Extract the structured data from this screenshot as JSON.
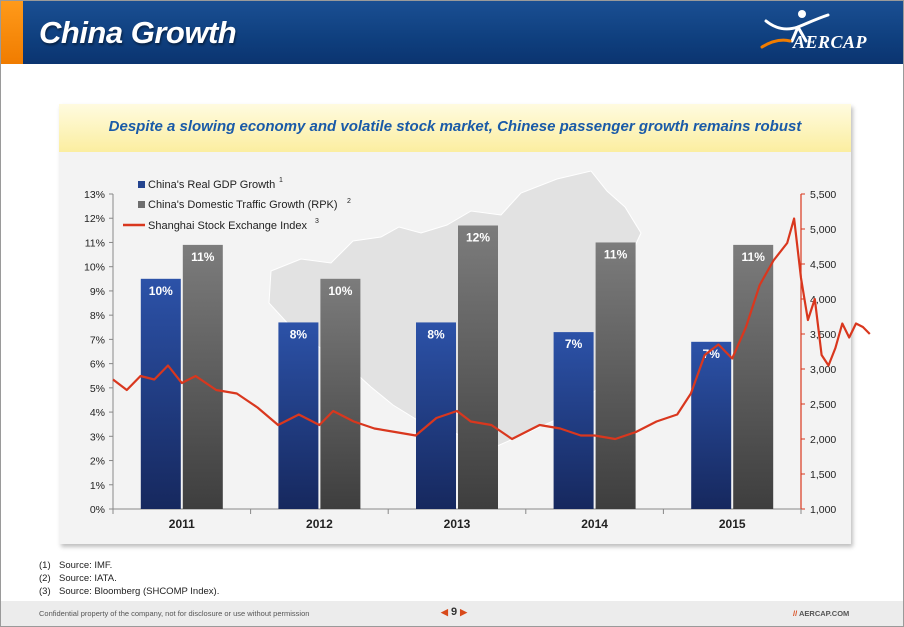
{
  "header": {
    "title": "China Growth",
    "logo_text": "AERCAP",
    "logo_icon": "aercap-figure-logo"
  },
  "subtitle": "Despite a slowing economy and volatile stock market, Chinese passenger growth remains robust",
  "colors": {
    "gdp": "#24448f",
    "rpk": "#6e6e6e",
    "index": "#d9371e",
    "header": "#0f3f7e",
    "accent": "#f07c00",
    "subtitle": "#1a5aa8"
  },
  "chart_data": {
    "type": "bar",
    "categories": [
      "2011",
      "2012",
      "2013",
      "2014",
      "2015"
    ],
    "series": [
      {
        "name": "China's Real GDP Growth",
        "sup": "1",
        "values": [
          9.5,
          7.7,
          7.7,
          7.3,
          6.9
        ],
        "labels": [
          "10%",
          "8%",
          "8%",
          "7%",
          "7%"
        ]
      },
      {
        "name": "China's Domestic Traffic Growth (RPK)",
        "sup": "2",
        "values": [
          10.9,
          9.5,
          11.7,
          11.0,
          10.9
        ],
        "labels": [
          "11%",
          "10%",
          "12%",
          "11%",
          "11%"
        ]
      }
    ],
    "line_series": {
      "name": "Shanghai Stock Exchange Index",
      "sup": "3",
      "axis": "right",
      "x": [
        2010.5,
        2010.6,
        2010.7,
        2010.8,
        2010.9,
        2011.0,
        2011.1,
        2011.25,
        2011.4,
        2011.55,
        2011.7,
        2011.85,
        2012.0,
        2012.1,
        2012.25,
        2012.4,
        2012.55,
        2012.7,
        2012.85,
        2013.0,
        2013.1,
        2013.25,
        2013.4,
        2013.5,
        2013.6,
        2013.75,
        2013.9,
        2014.0,
        2014.15,
        2014.3,
        2014.45,
        2014.6,
        2014.7,
        2014.8,
        2014.9,
        2015.0,
        2015.1,
        2015.2,
        2015.3,
        2015.4,
        2015.45,
        2015.5,
        2015.55,
        2015.6,
        2015.65,
        2015.7,
        2015.75,
        2015.8,
        2015.85,
        2015.9,
        2015.95,
        2016.0
      ],
      "y": [
        2850,
        2700,
        2900,
        2850,
        3050,
        2800,
        2900,
        2700,
        2650,
        2450,
        2200,
        2350,
        2200,
        2400,
        2250,
        2150,
        2100,
        2050,
        2300,
        2400,
        2250,
        2200,
        2000,
        2100,
        2200,
        2150,
        2050,
        2050,
        2000,
        2100,
        2250,
        2350,
        2650,
        3200,
        3350,
        3150,
        3600,
        4200,
        4550,
        4800,
        5150,
        4300,
        3700,
        4000,
        3200,
        3050,
        3300,
        3650,
        3450,
        3650,
        3600,
        3500
      ]
    },
    "ylim": [
      0,
      13
    ],
    "yticks": [
      "0%",
      "1%",
      "2%",
      "3%",
      "4%",
      "5%",
      "6%",
      "7%",
      "8%",
      "9%",
      "10%",
      "11%",
      "12%",
      "13%"
    ],
    "y2lim": [
      1000,
      5500
    ],
    "y2ticks": [
      "1,000",
      "1,500",
      "2,000",
      "2,500",
      "3,000",
      "3,500",
      "4,000",
      "4,500",
      "5,000",
      "5,500"
    ],
    "legend_position": "top-left",
    "grid": false
  },
  "footnotes": [
    {
      "num": "(1)",
      "text": "Source: IMF."
    },
    {
      "num": "(2)",
      "text": "Source: IATA."
    },
    {
      "num": "(3)",
      "text": "Source: Bloomberg (SHCOMP Index)."
    }
  ],
  "footer": {
    "confidential": "Confidential property of the company, not for disclosure or use without permission",
    "page": "9",
    "url_prefix": "//",
    "url": "AERCAP.COM"
  }
}
